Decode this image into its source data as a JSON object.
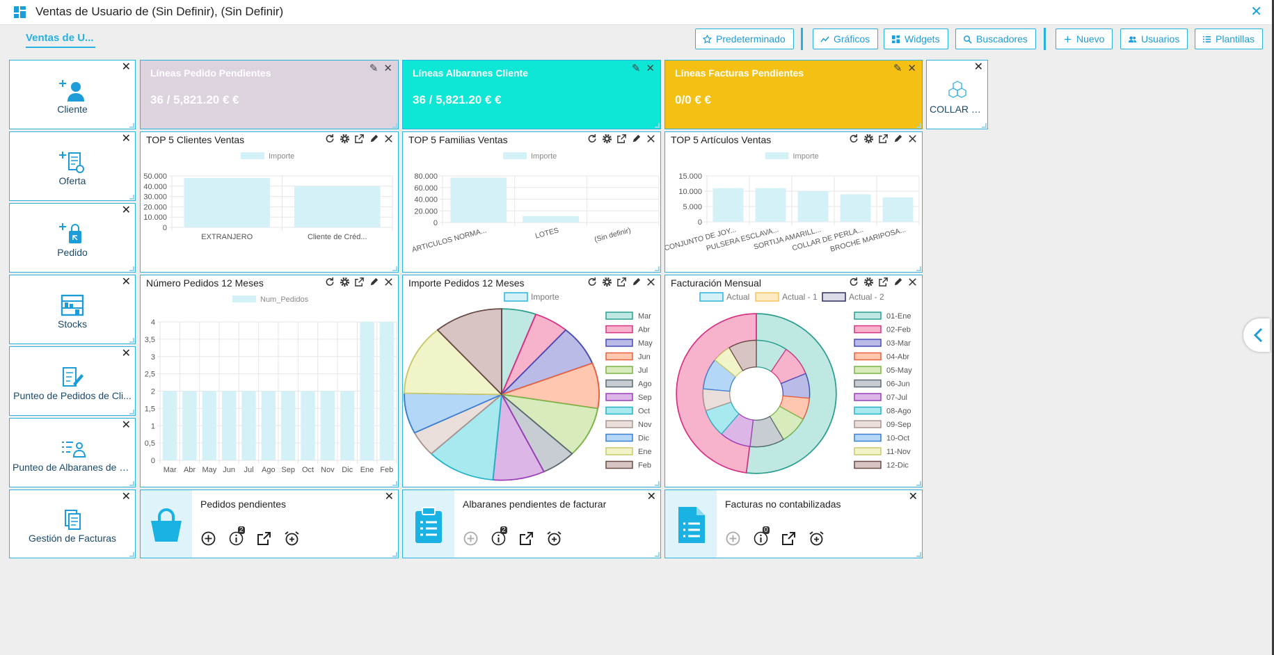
{
  "window": {
    "title": "Ventas de Usuario de (Sin Definir), (Sin Definir)"
  },
  "toolbar": {
    "tab_label": "Ventas de U...",
    "buttons": {
      "predeterminado": "Predeterminado",
      "graficos": "Gráficos",
      "widgets": "Widgets",
      "buscadores": "Buscadores",
      "nuevo": "Nuevo",
      "usuarios": "Usuarios",
      "plantillas": "Plantillas"
    }
  },
  "quick_tiles": {
    "cliente": "Cliente",
    "oferta": "Oferta",
    "pedido": "Pedido",
    "stocks": "Stocks",
    "punteo_pedidos": "Punteo de Pedidos de Cli...",
    "punteo_albaranes": "Punteo de Albaranes de C...",
    "gestion_facturas": "Gestión de Facturas",
    "collar": "COLLAR DE..."
  },
  "kpis": [
    {
      "label": "Líneas Pedido Pendientes",
      "value": "36 / 5,821.20 € €",
      "color": "#dcd3de"
    },
    {
      "label": "Líneas Albaranes Cliente",
      "value": "36 / 5,821.20 € €",
      "color": "#0ee6d6"
    },
    {
      "label": "Líneas Facturas Pendientes",
      "value": "0/0 € €",
      "color": "#f4c013"
    }
  ],
  "charts": {
    "top_clientes": {
      "title": "TOP 5 Clientes Ventas"
    },
    "top_familias": {
      "title": "TOP 5 Familias Ventas"
    },
    "top_articulos": {
      "title": "TOP 5 Artículos Ventas"
    },
    "num_pedidos": {
      "title": "Número Pedidos 12 Meses"
    },
    "importe_pedidos": {
      "title": "Importe Pedidos 12 Meses"
    },
    "facturacion": {
      "title": "Facturación Mensual"
    }
  },
  "chart_data": [
    {
      "type": "bar",
      "title": "TOP 5 Clientes Ventas",
      "legend": [
        "Importe"
      ],
      "categories": [
        "EXTRANJERO",
        "Cliente de Créd..."
      ],
      "values": [
        48000,
        40000
      ],
      "yticks": [
        "50.000",
        "40.000",
        "30.000",
        "20.000",
        "10.000",
        "0"
      ],
      "ylim": [
        0,
        50000
      ]
    },
    {
      "type": "bar",
      "title": "TOP 5 Familias Ventas",
      "legend": [
        "Importe"
      ],
      "categories": [
        "ARTICULOS NORMA...",
        "LOTES",
        "(Sin definir)"
      ],
      "values": [
        77000,
        11000,
        0
      ],
      "yticks": [
        "80.000",
        "60.000",
        "40.000",
        "20.000",
        "0"
      ],
      "ylim": [
        0,
        80000
      ]
    },
    {
      "type": "bar",
      "title": "TOP 5 Artículos Ventas",
      "legend": [
        "Importe"
      ],
      "categories": [
        "CONJUNTO DE JOY...",
        "PULSERA ESCLAVA...",
        "SORTIJA AMARILL...",
        "COLLAR DE PERLA...",
        "BROCHE MARIPOSA..."
      ],
      "values": [
        11000,
        11000,
        10000,
        9000,
        8000
      ],
      "yticks": [
        "15.000",
        "10.000",
        "5.000",
        "0"
      ],
      "ylim": [
        0,
        15000
      ]
    },
    {
      "type": "bar",
      "title": "Número Pedidos 12 Meses",
      "legend": [
        "Num_Pedidos"
      ],
      "categories": [
        "Mar",
        "Abr",
        "May",
        "Jun",
        "Jul",
        "Ago",
        "Sep",
        "Oct",
        "Nov",
        "Dic",
        "Ene",
        "Feb"
      ],
      "values": [
        2,
        2,
        2,
        2,
        2,
        2,
        2,
        2,
        2,
        2,
        4,
        4
      ],
      "yticks": [
        "4",
        "3,5",
        "3",
        "2,5",
        "2",
        "1,5",
        "1",
        "0,5",
        "0"
      ],
      "ylim": [
        0,
        4
      ]
    },
    {
      "type": "pie",
      "title": "Importe Pedidos 12 Meses",
      "legend": [
        "Importe"
      ],
      "categories": [
        "Mar",
        "Abr",
        "May",
        "Jun",
        "Jul",
        "Ago",
        "Sep",
        "Oct",
        "Nov",
        "Dic",
        "Ene",
        "Feb"
      ],
      "values": [
        6,
        6,
        8,
        9,
        10,
        6,
        9,
        12,
        5,
        8,
        14,
        12
      ],
      "colors": [
        "#bfe8e2",
        "#f7b3cc",
        "#bbbbe8",
        "#ffc7b0",
        "#d7ebbd",
        "#c7cdd2",
        "#dcb6e6",
        "#a8e8ef",
        "#eadedb",
        "#b4d6f7",
        "#f1f3c8",
        "#d6c5c2"
      ],
      "borders": [
        "#2a9d8f",
        "#d63384",
        "#4a4ab8",
        "#e8603c",
        "#7bb446",
        "#5a6872",
        "#9b3fb8",
        "#22b3c4",
        "#a89490",
        "#3a7fd0",
        "#c8c96a",
        "#6a4a46"
      ]
    },
    {
      "type": "pie",
      "title": "Facturación Mensual",
      "legend": [
        "Actual",
        "Actual - 1",
        "Actual - 2"
      ],
      "legend_colors": [
        "#2bb3e0",
        "#f3c45d",
        "#2c2c5c"
      ],
      "categories": [
        "01-Ene",
        "02-Feb",
        "03-Mar",
        "04-Abr",
        "05-May",
        "06-Jun",
        "07-Jul",
        "08-Ago",
        "09-Sep",
        "10-Oct",
        "11-Nov",
        "12-Dic"
      ],
      "outer": [
        {
          "name": "Actual",
          "values": [
            52,
            48
          ]
        }
      ],
      "inner_values": [
        10,
        10,
        8,
        7,
        9,
        11,
        10,
        9,
        7,
        10,
        6,
        9
      ],
      "colors": [
        "#bfe8e2",
        "#f7b3cc",
        "#bbbbe8",
        "#ffc7b0",
        "#d7ebbd",
        "#c7cdd2",
        "#dcb6e6",
        "#a8e8ef",
        "#eadedb",
        "#b4d6f7",
        "#f1f3c8",
        "#d6c5c2"
      ],
      "borders": [
        "#2a9d8f",
        "#d63384",
        "#4a4ab8",
        "#e8603c",
        "#7bb446",
        "#5a6872",
        "#9b3fb8",
        "#22b3c4",
        "#a89490",
        "#3a7fd0",
        "#c8c96a",
        "#6a4a46"
      ]
    }
  ],
  "pending": [
    {
      "title": "Pedidos pendientes",
      "badge": "2"
    },
    {
      "title": "Albaranes pendientes de facturar",
      "badge": "2"
    },
    {
      "title": "Facturas no contabilizadas",
      "badge": "0"
    }
  ],
  "colors": {
    "accent": "#27b0e0",
    "icon_blue": "#1c9cd8",
    "bar_fill": "#d4f1f8"
  }
}
